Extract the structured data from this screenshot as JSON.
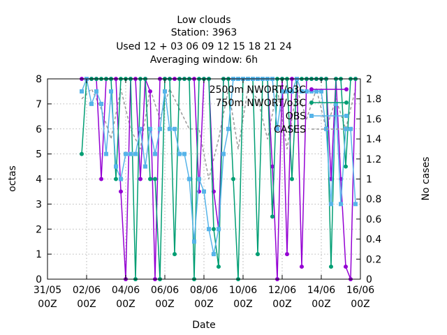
{
  "chart_data": {
    "type": "line",
    "title_lines": [
      "Low clouds",
      "Station:      3963",
      "Used  12 + 03 06 09 12 15 18 21 24",
      "Averaging window:  6h"
    ],
    "xlabel": "Date",
    "ylabel": "octas",
    "y2label": "No cases",
    "x_unit": "days since 31/05 00Z",
    "xlim": [
      0,
      16
    ],
    "ylim": [
      0,
      8
    ],
    "y2lim": [
      0,
      2
    ],
    "xticks": [
      {
        "v": 0,
        "l1": "31/05",
        "l2": "00Z"
      },
      {
        "v": 2,
        "l1": "02/06",
        "l2": "00Z"
      },
      {
        "v": 4,
        "l1": "04/06",
        "l2": "00Z"
      },
      {
        "v": 6,
        "l1": "06/06",
        "l2": "00Z"
      },
      {
        "v": 8,
        "l1": "08/06",
        "l2": "00Z"
      },
      {
        "v": 10,
        "l1": "10/06",
        "l2": "00Z"
      },
      {
        "v": 12,
        "l1": "12/06",
        "l2": "00Z"
      },
      {
        "v": 14,
        "l1": "14/06",
        "l2": "00Z"
      },
      {
        "v": 16,
        "l1": "16/06",
        "l2": "00Z"
      }
    ],
    "yticks": [
      0,
      1,
      2,
      3,
      4,
      5,
      6,
      7,
      8
    ],
    "y2ticks": [
      "0",
      "0.2",
      "0.4",
      "0.6",
      "0.8",
      "1",
      "1.2",
      "1.4",
      "1.6",
      "1.8",
      "2"
    ],
    "grid": true,
    "legend_position": "top-right",
    "series": [
      {
        "name": "2500m NWORT/o3C",
        "color": "#9400d3",
        "marker": "circle",
        "x": [
          1.75,
          2.0,
          2.25,
          2.5,
          2.75,
          3.0,
          3.25,
          3.5,
          3.75,
          4.0,
          4.25,
          4.5,
          4.75,
          5.0,
          5.25,
          5.5,
          5.75,
          6.0,
          6.25,
          6.5,
          6.75,
          7.0,
          7.25,
          7.5,
          7.75,
          8.0,
          8.25,
          8.5,
          8.75,
          9.0,
          9.25,
          9.5,
          9.75,
          10.0,
          10.25,
          10.5,
          10.75,
          11.0,
          11.25,
          11.5,
          11.75,
          12.0,
          12.25,
          12.5,
          12.75,
          13.0,
          13.25,
          13.5,
          13.75,
          14.0,
          14.25,
          14.5,
          14.75,
          15.0,
          15.25,
          15.5,
          15.75
        ],
        "y": [
          8,
          8,
          8,
          8,
          4,
          8,
          8,
          8,
          3.5,
          0,
          8,
          8,
          4,
          8,
          7.5,
          0,
          8,
          8,
          8,
          8,
          8,
          8,
          8,
          8,
          3.5,
          8,
          8,
          3.5,
          2,
          8,
          8,
          8,
          8,
          8,
          8,
          8,
          8,
          8,
          8,
          4.5,
          0,
          8,
          1,
          8,
          8,
          0.5,
          8,
          8,
          8,
          8,
          8,
          4,
          8,
          4,
          0.5,
          0,
          8
        ]
      },
      {
        "name": "750m NWORT/o3C",
        "color": "#009e73",
        "marker": "circle",
        "x": [
          1.75,
          2.0,
          2.25,
          2.5,
          2.75,
          3.0,
          3.25,
          3.5,
          3.75,
          4.0,
          4.25,
          4.5,
          4.75,
          5.0,
          5.25,
          5.5,
          5.75,
          6.0,
          6.25,
          6.5,
          6.75,
          7.0,
          7.25,
          7.5,
          7.75,
          8.0,
          8.25,
          8.5,
          8.75,
          9.0,
          9.25,
          9.5,
          9.75,
          10.0,
          10.25,
          10.5,
          10.75,
          11.0,
          11.25,
          11.5,
          11.75,
          12.0,
          12.25,
          12.5,
          12.75,
          13.0,
          13.25,
          13.5,
          13.75,
          14.0,
          14.25,
          14.5,
          14.75,
          15.0,
          15.25,
          15.5,
          15.75
        ],
        "y": [
          5,
          8,
          8,
          8,
          8,
          8,
          8,
          4,
          8,
          8,
          8,
          0,
          8,
          8,
          4,
          4,
          0,
          8,
          8,
          1,
          8,
          8,
          8,
          0,
          8,
          8,
          8,
          2,
          0.5,
          8,
          8,
          4,
          0,
          8,
          8,
          8,
          1,
          8,
          8,
          2.5,
          8,
          8,
          8,
          4,
          8,
          8,
          8,
          8,
          8,
          8,
          8,
          0.5,
          8,
          8,
          4.5,
          8,
          8
        ]
      },
      {
        "name": "OBS",
        "color": "#56b4e9",
        "marker": "square",
        "x": [
          1.75,
          2.0,
          2.25,
          2.5,
          2.75,
          3.0,
          3.25,
          3.5,
          3.75,
          4.0,
          4.25,
          4.5,
          4.75,
          5.0,
          5.25,
          5.5,
          5.75,
          6.0,
          6.25,
          6.5,
          6.75,
          7.0,
          7.25,
          7.5,
          7.75,
          8.0,
          8.25,
          8.5,
          8.75,
          9.0,
          9.25,
          9.5,
          9.75,
          10.0,
          10.25,
          10.5,
          10.75,
          11.0,
          11.25,
          11.5,
          11.75,
          12.0,
          12.25,
          12.5,
          12.75,
          13.0,
          13.25,
          13.5,
          13.75,
          14.0,
          14.25,
          14.5,
          14.75,
          15.0,
          15.25,
          15.5,
          15.75
        ],
        "y": [
          7.5,
          8,
          7,
          7.5,
          7,
          5,
          7.5,
          4.5,
          4,
          5,
          5,
          5,
          6,
          4.5,
          6,
          5,
          6,
          7.5,
          6,
          6,
          5,
          5,
          4,
          1.5,
          4,
          3.5,
          2,
          1,
          2,
          5,
          6,
          8,
          8,
          8,
          8,
          8,
          8,
          8,
          8,
          8,
          6,
          7.5,
          7.5,
          7.5,
          8,
          7.5,
          7.5,
          7.5,
          7.5,
          7.5,
          6,
          3,
          7,
          3,
          6,
          6,
          3
        ]
      },
      {
        "name": "CASES",
        "color": "#999999",
        "marker": "none",
        "dashed": true,
        "axis": "y2",
        "x": [
          1.75,
          2.25,
          2.75,
          3.25,
          3.75,
          4.25,
          4.75,
          5.25,
          5.75,
          6.25,
          6.75,
          7.25,
          7.75,
          8.25,
          8.75,
          9.25,
          9.75,
          10.25,
          10.75,
          11.25,
          11.75,
          12.25,
          12.75,
          13.25,
          13.75,
          14.25,
          14.75,
          15.25,
          15.75
        ],
        "y": [
          1.8,
          1.9,
          1.7,
          1.4,
          1.9,
          1.5,
          1.3,
          1.9,
          1.6,
          1.9,
          1.7,
          1.5,
          1.5,
          1.0,
          1.4,
          1.9,
          1.3,
          1.9,
          1.8,
          1.4,
          1.9,
          1.3,
          1.9,
          1.6,
          1.9,
          1.5,
          1.8,
          1.5,
          1.9
        ]
      }
    ]
  }
}
